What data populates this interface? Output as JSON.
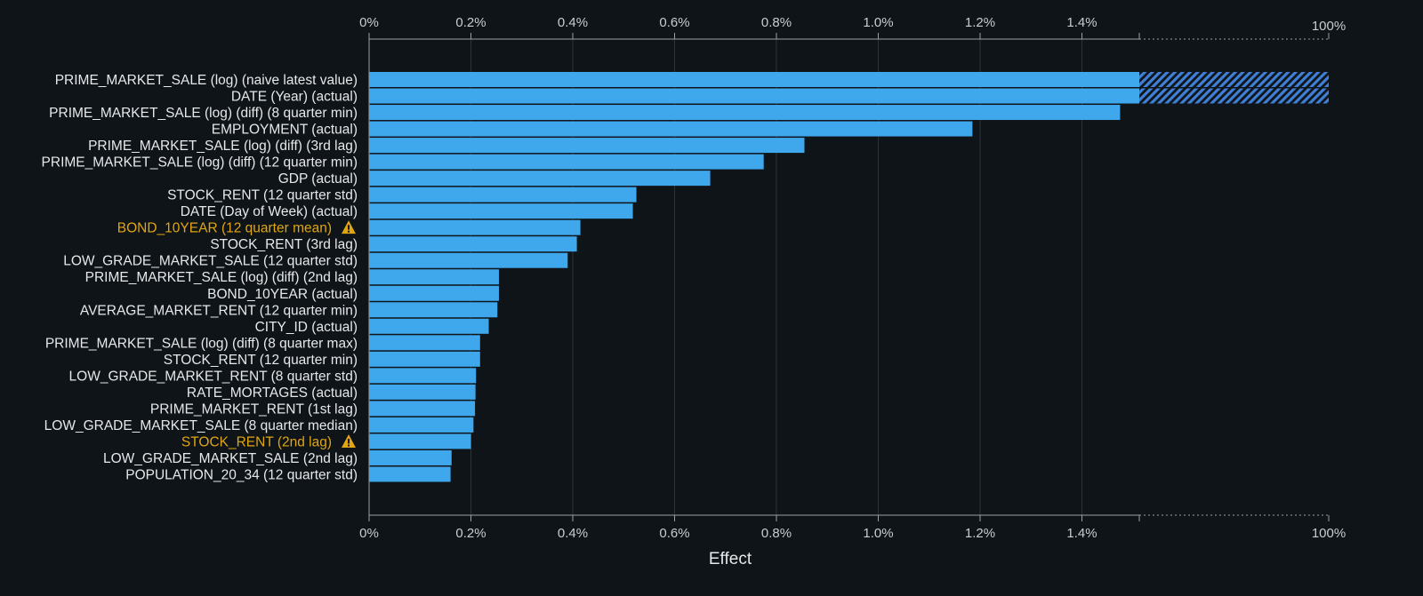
{
  "chart_data": {
    "type": "bar",
    "orientation": "horizontal",
    "xlabel": "Effect",
    "x_ticks": [
      "0%",
      "0.2%",
      "0.4%",
      "0.6%",
      "0.8%",
      "1.0%",
      "1.2%",
      "1.4%"
    ],
    "x_break_label": "100%",
    "xlim": [
      0,
      1.5
    ],
    "x_break_value": 100,
    "grid": true,
    "colors": {
      "bar": "#3fa7ec",
      "warning": "#e0a612",
      "background": "#0f1418",
      "hatch": "#3f7fd6"
    },
    "categories": [
      {
        "label": "PRIME_MARKET_SALE (log) (naive latest value)",
        "value": 100,
        "warning": false
      },
      {
        "label": "DATE (Year) (actual)",
        "value": 1.51,
        "warning": false
      },
      {
        "label": "PRIME_MARKET_SALE (log) (diff) (8 quarter min)",
        "value": 1.475,
        "warning": false
      },
      {
        "label": "EMPLOYMENT (actual)",
        "value": 1.185,
        "warning": false
      },
      {
        "label": "PRIME_MARKET_SALE (log) (diff) (3rd lag)",
        "value": 0.855,
        "warning": false
      },
      {
        "label": "PRIME_MARKET_SALE (log) (diff) (12 quarter min)",
        "value": 0.775,
        "warning": false
      },
      {
        "label": "GDP (actual)",
        "value": 0.67,
        "warning": false
      },
      {
        "label": "STOCK_RENT (12 quarter std)",
        "value": 0.525,
        "warning": false
      },
      {
        "label": "DATE (Day of Week) (actual)",
        "value": 0.518,
        "warning": false
      },
      {
        "label": "BOND_10YEAR (12 quarter mean)",
        "value": 0.415,
        "warning": true
      },
      {
        "label": "STOCK_RENT (3rd lag)",
        "value": 0.408,
        "warning": false
      },
      {
        "label": "LOW_GRADE_MARKET_SALE (12 quarter std)",
        "value": 0.39,
        "warning": false
      },
      {
        "label": "PRIME_MARKET_SALE (log) (diff) (2nd lag)",
        "value": 0.255,
        "warning": false
      },
      {
        "label": "BOND_10YEAR (actual)",
        "value": 0.255,
        "warning": false
      },
      {
        "label": "AVERAGE_MARKET_RENT (12 quarter min)",
        "value": 0.252,
        "warning": false
      },
      {
        "label": "CITY_ID (actual)",
        "value": 0.235,
        "warning": false
      },
      {
        "label": "PRIME_MARKET_SALE (log) (diff) (8 quarter max)",
        "value": 0.218,
        "warning": false
      },
      {
        "label": "STOCK_RENT (12 quarter min)",
        "value": 0.218,
        "warning": false
      },
      {
        "label": "LOW_GRADE_MARKET_RENT (8 quarter std)",
        "value": 0.21,
        "warning": false
      },
      {
        "label": "RATE_MORTAGES (actual)",
        "value": 0.209,
        "warning": false
      },
      {
        "label": "PRIME_MARKET_RENT (1st lag)",
        "value": 0.208,
        "warning": false
      },
      {
        "label": "LOW_GRADE_MARKET_SALE (8 quarter median)",
        "value": 0.205,
        "warning": false
      },
      {
        "label": "STOCK_RENT (2nd lag)",
        "value": 0.2,
        "warning": true
      },
      {
        "label": "LOW_GRADE_MARKET_SALE (2nd lag)",
        "value": 0.162,
        "warning": false
      },
      {
        "label": "POPULATION_20_34 (12 quarter std)",
        "value": 0.16,
        "warning": false
      }
    ],
    "warning_icon": "warning-triangle-icon"
  }
}
